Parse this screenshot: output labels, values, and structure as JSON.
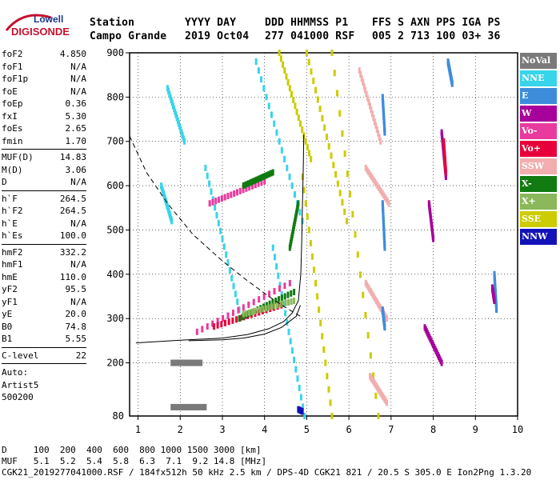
{
  "logo": {
    "line1": "Lowell",
    "line2": "DIGISONDE"
  },
  "header": {
    "row1": [
      "Station",
      "YYYY DAY",
      "DDD HHMMSS P1",
      "FFS S AXN PPS IGA PS"
    ],
    "row2": [
      "Campo Grande",
      "2019 Oct04",
      "277 041000 RSF",
      "005 2 713 100 03+ 36"
    ]
  },
  "parameters": [
    [
      {
        "name": "foF2",
        "value": "4.850"
      },
      {
        "name": "foF1",
        "value": "N/A"
      },
      {
        "name": "foF1p",
        "value": "N/A"
      },
      {
        "name": "foE",
        "value": "N/A"
      },
      {
        "name": "foEp",
        "value": "0.36"
      },
      {
        "name": "fxI",
        "value": "5.30"
      },
      {
        "name": "foEs",
        "value": "2.65"
      },
      {
        "name": "fmin",
        "value": "1.70"
      }
    ],
    [
      {
        "name": "MUF(D)",
        "value": "14.83"
      },
      {
        "name": "M(D)",
        "value": "3.06"
      },
      {
        "name": "D",
        "value": "N/A"
      }
    ],
    [
      {
        "name": "h`F",
        "value": "264.5"
      },
      {
        "name": "h`F2",
        "value": "264.5"
      },
      {
        "name": "h`E",
        "value": "N/A"
      },
      {
        "name": "h`Es",
        "value": "100.0"
      }
    ],
    [
      {
        "name": "hmF2",
        "value": "332.2"
      },
      {
        "name": "hmF1",
        "value": "N/A"
      },
      {
        "name": "hmE",
        "value": "110.0"
      },
      {
        "name": "yF2",
        "value": "95.5"
      },
      {
        "name": "yF1",
        "value": "N/A"
      },
      {
        "name": "yE",
        "value": "20.0"
      },
      {
        "name": "B0",
        "value": "74.8"
      },
      {
        "name": "B1",
        "value": "5.55"
      }
    ],
    [
      {
        "name": "C-level",
        "value": "22"
      }
    ]
  ],
  "auto": [
    "Auto:",
    "Artist5",
    "500200"
  ],
  "legend": [
    {
      "label": "NoVal",
      "color": "#7a7a7a"
    },
    {
      "label": "NNE",
      "color": "#38d4ea"
    },
    {
      "label": "E",
      "color": "#3d8ddb"
    },
    {
      "label": "W",
      "color": "#a7009b"
    },
    {
      "label": "Vo-",
      "color": "#e93a9d"
    },
    {
      "label": "Vo+",
      "color": "#e8003a"
    },
    {
      "label": "SSW",
      "color": "#f2aeae"
    },
    {
      "label": "X-",
      "color": "#117a11"
    },
    {
      "label": "X+",
      "color": "#8ab85a"
    },
    {
      "label": "SSE",
      "color": "#cccc00"
    },
    {
      "label": "NNW",
      "color": "#1212b8"
    }
  ],
  "footer": {
    "d_line": "D     100  200  400  600  800 1000 1500 3000 [km]",
    "muf_line": "MUF   5.1  5.2  5.4  5.8  6.3  7.1  9.2 14.8 [MHz]",
    "info_line": "CGK21_2019277041000.RSF / 184fx512h 50 kHz 2.5 km / DPS-4D CGK21 821 / 20.5 S 305.0 E Ion2Png 1.3.20"
  },
  "chart_data": {
    "type": "scatter",
    "title": "",
    "xlabel": "",
    "ylabel": "",
    "xlim": [
      0.8,
      10
    ],
    "ylim": [
      80,
      900
    ],
    "xticks": [
      1,
      2,
      3,
      4,
      5,
      6,
      7,
      8,
      9,
      10
    ],
    "yticks": [
      200,
      300,
      400,
      500,
      600,
      700,
      800,
      900
    ],
    "ytick_bottom_label": "80",
    "grid": true,
    "profile_solid": [
      [
        0.95,
        245
      ],
      [
        2,
        251
      ],
      [
        3,
        256
      ],
      [
        3.6,
        264
      ],
      [
        4.1,
        277
      ],
      [
        4.45,
        293
      ],
      [
        4.65,
        312
      ],
      [
        4.8,
        340
      ],
      [
        4.86,
        400
      ],
      [
        4.88,
        470
      ],
      [
        4.9,
        560
      ],
      [
        4.92,
        650
      ],
      [
        4.93,
        715
      ]
    ],
    "profile_lower": [
      [
        2.2,
        250
      ],
      [
        3,
        252
      ],
      [
        3.5,
        256
      ],
      [
        4,
        265
      ],
      [
        4.4,
        280
      ],
      [
        4.75,
        305
      ],
      [
        4.85,
        330
      ]
    ],
    "muf_curve_dashed": [
      [
        0.8,
        712
      ],
      [
        1.2,
        630
      ],
      [
        1.7,
        560
      ],
      [
        2.3,
        490
      ],
      [
        3,
        430
      ],
      [
        3.6,
        385
      ],
      [
        4.1,
        350
      ],
      [
        4.5,
        325
      ],
      [
        4.8,
        308
      ],
      [
        4.85,
        305
      ]
    ],
    "series": [
      {
        "name": "NNE",
        "color": "#38d4ea",
        "segments": [
          [
            [
              1.55,
              600
            ],
            [
              1.8,
              520
            ]
          ],
          [
            [
              1.7,
              820
            ],
            [
              2.1,
              700
            ]
          ],
          [
            [
              3.8,
              880
            ],
            [
              4.9,
              520
            ]
          ],
          [
            [
              2.6,
              640
            ],
            [
              3.4,
              320
            ]
          ],
          [
            [
              4.2,
              460
            ],
            [
              4.95,
              80
            ]
          ]
        ]
      },
      {
        "name": "SSE",
        "color": "#cccc00",
        "segments": [
          [
            [
              4.35,
              900
            ],
            [
              5.1,
              660
            ]
          ],
          [
            [
              4.9,
              620
            ],
            [
              5.6,
              80
            ]
          ],
          [
            [
              5.0,
              900
            ],
            [
              5.95,
              520
            ]
          ],
          [
            [
              5.6,
              900
            ],
            [
              6.7,
              80
            ]
          ]
        ]
      },
      {
        "name": "SSW",
        "color": "#f2aeae",
        "segments": [
          [
            [
              6.25,
              860
            ],
            [
              6.75,
              700
            ]
          ],
          [
            [
              6.4,
              640
            ],
            [
              6.95,
              560
            ]
          ],
          [
            [
              6.4,
              380
            ],
            [
              6.9,
              300
            ]
          ],
          [
            [
              6.5,
              170
            ],
            [
              6.9,
              110
            ]
          ]
        ]
      },
      {
        "name": "E",
        "color": "#3d8ddb",
        "segments": [
          [
            [
              6.8,
              800
            ],
            [
              6.85,
              720
            ]
          ],
          [
            [
              6.8,
              560
            ],
            [
              6.85,
              460
            ]
          ],
          [
            [
              6.8,
              320
            ],
            [
              6.85,
              280
            ]
          ],
          [
            [
              9.45,
              400
            ],
            [
              9.5,
              320
            ]
          ],
          [
            [
              8.35,
              880
            ],
            [
              8.45,
              830
            ]
          ]
        ]
      },
      {
        "name": "W",
        "color": "#a7009b",
        "segments": [
          [
            [
              8.2,
              720
            ],
            [
              8.3,
              620
            ]
          ],
          [
            [
              7.9,
              560
            ],
            [
              8.0,
              480
            ]
          ],
          [
            [
              7.8,
              280
            ],
            [
              8.2,
              200
            ]
          ],
          [
            [
              9.4,
              370
            ],
            [
              9.45,
              340
            ]
          ]
        ]
      },
      {
        "name": "Vo-",
        "color": "#e93a9d",
        "segments": [
          [
            [
              2.4,
              270
            ],
            [
              4.6,
              380
            ]
          ],
          [
            [
              2.7,
              560
            ],
            [
              4.0,
              610
            ]
          ]
        ]
      },
      {
        "name": "Vo+",
        "color": "#e8003a",
        "segments": [
          [
            [
              2.8,
              282
            ],
            [
              4.4,
              330
            ]
          ],
          [
            [
              8.25,
              700
            ],
            [
              8.3,
              630
            ]
          ]
        ]
      },
      {
        "name": "X-",
        "color": "#117a11",
        "segments": [
          [
            [
              3.4,
              300
            ],
            [
              4.7,
              360
            ]
          ],
          [
            [
              3.5,
              600
            ],
            [
              4.2,
              630
            ]
          ],
          [
            [
              4.6,
              460
            ],
            [
              4.8,
              560
            ]
          ]
        ]
      },
      {
        "name": "X+",
        "color": "#8ab85a",
        "segments": [
          [
            [
              3.5,
              310
            ],
            [
              4.7,
              340
            ]
          ]
        ]
      },
      {
        "name": "NNW",
        "color": "#1212b8",
        "segments": [
          [
            [
              4.8,
              95
            ],
            [
              4.9,
              90
            ]
          ]
        ]
      },
      {
        "name": "NoVal",
        "color": "#7a7a7a",
        "segments": [
          [
            [
              1.8,
              100
            ],
            [
              2.6,
              100
            ]
          ],
          [
            [
              1.8,
              200
            ],
            [
              2.5,
              200
            ]
          ]
        ]
      }
    ]
  }
}
